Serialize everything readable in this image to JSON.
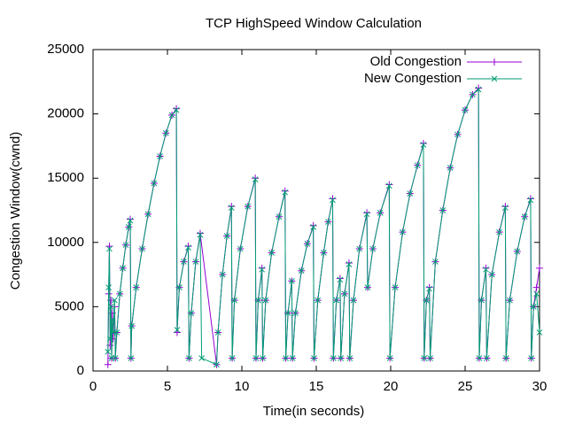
{
  "chart_data": {
    "type": "line",
    "title": "TCP HighSpeed Window Calculation",
    "x_label": "Time(in seconds)",
    "y_label": "Congestion Window(cwnd)",
    "xlim": [
      0,
      30
    ],
    "xticks": [
      0,
      5,
      10,
      15,
      20,
      25,
      30
    ],
    "ylim": [
      0,
      25000
    ],
    "yticks": [
      0,
      5000,
      10000,
      15000,
      20000,
      25000
    ],
    "legend": "top right",
    "series": [
      {
        "name": "Old Congestion",
        "color": "#9400d3",
        "marker": "plus",
        "x": [
          1.0,
          1.05,
          1.1,
          1.15,
          1.2,
          1.25,
          1.3,
          1.35,
          1.45,
          1.5,
          1.6,
          1.8,
          2.0,
          2.2,
          2.4,
          2.5,
          2.55,
          2.6,
          2.9,
          3.3,
          3.7,
          4.1,
          4.5,
          4.9,
          5.3,
          5.6,
          5.65,
          5.8,
          6.1,
          6.4,
          6.45,
          6.6,
          6.9,
          7.2,
          8.3,
          8.4,
          8.7,
          9.0,
          9.3,
          9.35,
          9.5,
          9.9,
          10.4,
          10.9,
          10.95,
          11.1,
          11.35,
          11.4,
          11.6,
          12.0,
          12.5,
          12.9,
          12.95,
          13.1,
          13.35,
          13.4,
          13.6,
          14.0,
          14.4,
          14.8,
          14.85,
          15.1,
          15.5,
          15.8,
          16.1,
          16.15,
          16.35,
          16.6,
          16.65,
          16.9,
          17.2,
          17.25,
          17.5,
          17.9,
          18.4,
          18.45,
          18.8,
          19.3,
          19.9,
          19.95,
          20.3,
          20.8,
          21.3,
          21.8,
          22.2,
          22.25,
          22.4,
          22.6,
          22.65,
          23.0,
          23.5,
          24.0,
          24.5,
          25.0,
          25.5,
          25.9,
          25.95,
          26.1,
          26.4,
          26.45,
          26.8,
          27.3,
          27.7,
          27.75,
          28.0,
          28.5,
          29.0,
          29.4,
          29.45,
          29.6,
          29.8,
          30.0
        ],
        "values": [
          500,
          6000,
          9700,
          2000,
          5500,
          1000,
          4500,
          2500,
          5000,
          1000,
          3000,
          6000,
          8000,
          9800,
          11200,
          11800,
          1000,
          3500,
          6500,
          9500,
          12200,
          14600,
          16700,
          18500,
          19900,
          20400,
          3000,
          6500,
          8500,
          9700,
          1000,
          4500,
          8500,
          10700,
          500,
          3000,
          7500,
          10500,
          12800,
          1000,
          5500,
          9500,
          12800,
          15000,
          1000,
          5500,
          8000,
          1000,
          5500,
          9200,
          12000,
          14000,
          1000,
          4500,
          7000,
          1000,
          4500,
          7800,
          9900,
          11300,
          1000,
          5500,
          9200,
          11600,
          13400,
          1000,
          5500,
          7200,
          1000,
          6000,
          8400,
          1000,
          5500,
          9500,
          12300,
          6500,
          9500,
          12300,
          14500,
          1000,
          6500,
          10800,
          13800,
          16000,
          17700,
          1000,
          5500,
          6500,
          1000,
          8500,
          12500,
          15800,
          18400,
          20300,
          21500,
          22000,
          1000,
          5500,
          8000,
          1000,
          7500,
          10800,
          12800,
          1000,
          5500,
          9300,
          12000,
          13400,
          1000,
          5000,
          6500,
          8000
        ]
      },
      {
        "name": "New Congestion",
        "color": "#009e73",
        "marker": "cross",
        "x": [
          1.0,
          1.05,
          1.1,
          1.15,
          1.2,
          1.25,
          1.3,
          1.35,
          1.45,
          1.5,
          1.6,
          1.8,
          2.0,
          2.2,
          2.4,
          2.5,
          2.55,
          2.6,
          2.9,
          3.3,
          3.7,
          4.1,
          4.5,
          4.9,
          5.3,
          5.6,
          5.65,
          5.8,
          6.1,
          6.4,
          6.45,
          6.6,
          6.9,
          7.2,
          7.3,
          8.3,
          8.4,
          8.7,
          9.0,
          9.3,
          9.35,
          9.5,
          9.9,
          10.4,
          10.9,
          10.95,
          11.1,
          11.35,
          11.4,
          11.6,
          12.0,
          12.5,
          12.9,
          12.95,
          13.1,
          13.35,
          13.4,
          13.6,
          14.0,
          14.4,
          14.8,
          14.85,
          15.1,
          15.5,
          15.8,
          16.1,
          16.15,
          16.35,
          16.6,
          16.65,
          16.9,
          17.2,
          17.25,
          17.5,
          17.9,
          18.4,
          18.45,
          18.8,
          19.3,
          19.9,
          19.95,
          20.3,
          20.8,
          21.3,
          21.8,
          22.2,
          22.25,
          22.4,
          22.6,
          22.65,
          23.0,
          23.5,
          24.0,
          24.5,
          25.0,
          25.5,
          25.9,
          25.95,
          26.1,
          26.4,
          26.45,
          26.8,
          27.3,
          27.7,
          27.75,
          28.0,
          28.5,
          29.0,
          29.4,
          29.45,
          29.6,
          29.8,
          30.0
        ],
        "values": [
          1500,
          6500,
          9500,
          2500,
          5000,
          1000,
          4000,
          3000,
          5500,
          1000,
          3000,
          6000,
          8000,
          9800,
          11200,
          11700,
          1000,
          3500,
          6500,
          9500,
          12200,
          14600,
          16700,
          18500,
          19900,
          20300,
          3200,
          6500,
          8500,
          9600,
          1000,
          4500,
          8500,
          10600,
          1000,
          500,
          3000,
          7500,
          10500,
          12700,
          1000,
          5500,
          9500,
          12800,
          14900,
          1000,
          5500,
          7900,
          1000,
          5500,
          9200,
          12000,
          13900,
          1000,
          4500,
          7000,
          1000,
          4500,
          7800,
          9900,
          11200,
          1000,
          5500,
          9200,
          11600,
          13300,
          1000,
          5500,
          7100,
          1000,
          6000,
          8300,
          1000,
          5500,
          9500,
          12200,
          6500,
          9500,
          12300,
          14400,
          1000,
          6500,
          10800,
          13800,
          16000,
          17600,
          1000,
          5500,
          6400,
          1000,
          8500,
          12500,
          15800,
          18400,
          20300,
          21500,
          21900,
          1000,
          5500,
          7900,
          1000,
          7500,
          10800,
          12700,
          1000,
          5500,
          9300,
          12000,
          13300,
          1000,
          5000,
          6000,
          3000
        ]
      }
    ]
  }
}
